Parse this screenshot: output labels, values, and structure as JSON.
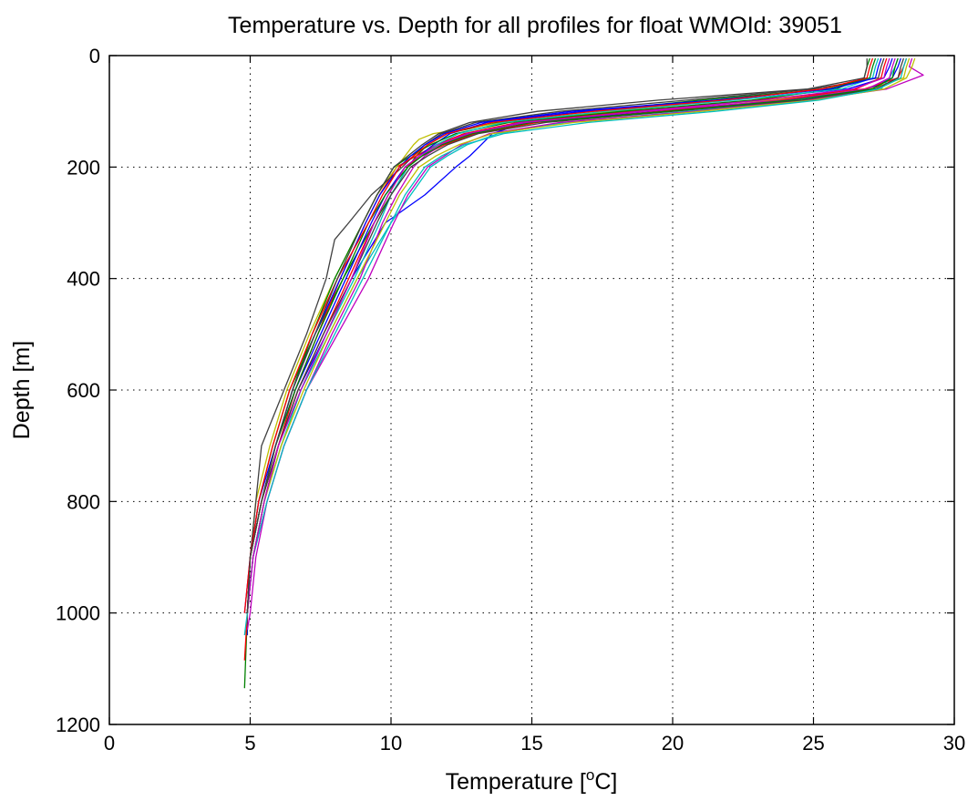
{
  "chart_data": {
    "type": "line",
    "title": "Temperature vs. Depth for all profiles for float WMOId: 39051",
    "xlabel": "Temperature [",
    "xlabel_superscript": "o",
    "xlabel_suffix": "C]",
    "ylabel": "Depth [m]",
    "xlim": [
      0,
      30
    ],
    "ylim": [
      0,
      1200
    ],
    "y_reversed": true,
    "grid": true,
    "grid_style": "dotted",
    "x_ticks": [
      0,
      5,
      10,
      15,
      20,
      25,
      30
    ],
    "y_ticks": [
      0,
      200,
      400,
      600,
      800,
      1000,
      1200
    ],
    "x_tick_labels": [
      "0",
      "5",
      "10",
      "15",
      "20",
      "25",
      "30"
    ],
    "y_tick_labels": [
      "0",
      "200",
      "400",
      "600",
      "800",
      "1000",
      "1200"
    ],
    "series_colors": [
      "#0000ff",
      "#008000",
      "#ff0000",
      "#00bfbf",
      "#bf00bf",
      "#bfbf00",
      "#404040"
    ],
    "series": [
      {
        "color": "#0000ff",
        "depth": [
          5,
          20,
          40,
          60,
          80,
          100,
          120,
          140,
          160,
          180,
          200,
          250,
          300,
          400,
          500,
          600,
          700,
          800,
          900,
          1000,
          1040
        ],
        "temp": [
          28.1,
          28.0,
          27.8,
          27.0,
          24.5,
          19.5,
          14.8,
          13.6,
          13.2,
          12.8,
          12.3,
          11.2,
          9.8,
          8.6,
          7.7,
          6.7,
          6.0,
          5.5,
          5.1,
          4.9,
          4.9
        ]
      },
      {
        "color": "#008000",
        "depth": [
          5,
          20,
          40,
          60,
          80,
          100,
          120,
          140,
          160,
          180,
          200,
          250,
          300,
          400,
          500,
          600,
          700,
          800,
          900,
          1000,
          1135
        ],
        "temp": [
          27.2,
          27.1,
          27.0,
          25.5,
          21.0,
          17.0,
          13.8,
          12.0,
          11.3,
          10.9,
          10.6,
          10.0,
          9.4,
          8.3,
          7.3,
          6.4,
          5.8,
          5.3,
          5.0,
          4.9,
          4.8
        ]
      },
      {
        "color": "#ff0000",
        "depth": [
          5,
          20,
          40,
          60,
          80,
          100,
          120,
          140,
          160,
          180,
          200,
          250,
          300,
          400,
          500,
          600,
          700,
          800,
          900,
          1000,
          1085
        ],
        "temp": [
          28.3,
          28.2,
          28.0,
          26.8,
          23.0,
          18.5,
          14.5,
          12.6,
          11.6,
          10.9,
          10.2,
          9.6,
          9.1,
          8.2,
          7.4,
          6.6,
          6.0,
          5.5,
          5.1,
          4.9,
          4.8
        ]
      },
      {
        "color": "#00bfbf",
        "depth": [
          5,
          20,
          40,
          60,
          80,
          100,
          120,
          140,
          160,
          180,
          200,
          250,
          300,
          400,
          500,
          600,
          700,
          800,
          900,
          1000,
          1040
        ],
        "temp": [
          28.0,
          27.9,
          27.7,
          27.4,
          24.5,
          20.5,
          16.2,
          13.8,
          12.7,
          12.0,
          11.4,
          10.7,
          10.0,
          8.8,
          7.8,
          6.8,
          6.1,
          5.5,
          5.1,
          4.9,
          4.8
        ]
      },
      {
        "color": "#bf00bf",
        "depth": [
          5,
          20,
          35,
          60,
          80,
          100,
          120,
          140,
          160,
          180,
          200,
          250,
          300,
          400,
          500,
          600,
          700,
          800,
          900,
          1000,
          1030
        ],
        "temp": [
          28.5,
          28.4,
          28.9,
          27.6,
          24.8,
          20.8,
          16.0,
          13.5,
          12.5,
          11.9,
          11.3,
          10.6,
          10.1,
          9.2,
          8.1,
          7.0,
          6.2,
          5.6,
          5.2,
          5.0,
          4.9
        ]
      },
      {
        "color": "#bfbf00",
        "depth": [
          5,
          20,
          40,
          60,
          80,
          100,
          120,
          140,
          150,
          160,
          180,
          200,
          250,
          300,
          400,
          500,
          600,
          700,
          800,
          900,
          1000
        ],
        "temp": [
          28.4,
          28.3,
          28.2,
          27.0,
          23.5,
          18.0,
          14.0,
          11.5,
          11.0,
          10.8,
          10.5,
          10.2,
          9.5,
          9.0,
          8.0,
          7.1,
          6.3,
          5.7,
          5.2,
          5.0,
          4.9
        ]
      },
      {
        "color": "#404040",
        "depth": [
          5,
          20,
          40,
          60,
          80,
          100,
          120,
          140,
          160,
          180,
          200,
          250,
          300,
          330,
          400,
          500,
          600,
          700,
          800,
          900,
          1000
        ],
        "temp": [
          27.5,
          27.4,
          27.3,
          25.0,
          20.5,
          16.0,
          13.0,
          11.8,
          11.2,
          10.8,
          10.4,
          9.3,
          8.5,
          8.0,
          7.7,
          7.0,
          6.2,
          5.4,
          5.2,
          5.0,
          4.9
        ]
      },
      {
        "color": "#0000ff",
        "depth": [
          5,
          20,
          40,
          60,
          80,
          100,
          120,
          140,
          160,
          180,
          200,
          250,
          300,
          400,
          500,
          600,
          700,
          800,
          900,
          1000
        ],
        "temp": [
          27.8,
          27.7,
          27.5,
          26.2,
          22.0,
          16.8,
          13.4,
          12.1,
          11.5,
          11.0,
          10.5,
          9.8,
          9.3,
          8.4,
          7.5,
          6.6,
          5.9,
          5.4,
          5.0,
          4.9
        ]
      },
      {
        "color": "#008000",
        "depth": [
          5,
          20,
          40,
          60,
          80,
          100,
          120,
          140,
          160,
          180,
          200,
          250,
          300,
          400,
          500,
          600,
          700,
          800,
          900,
          1000
        ],
        "temp": [
          27.0,
          26.9,
          26.8,
          25.8,
          22.8,
          18.2,
          14.2,
          12.3,
          11.4,
          10.7,
          10.1,
          9.5,
          9.0,
          8.0,
          7.2,
          6.5,
          5.9,
          5.4,
          5.0,
          4.9
        ]
      },
      {
        "color": "#ff0000",
        "depth": [
          5,
          20,
          40,
          60,
          80,
          100,
          120,
          140,
          160,
          180,
          200,
          250,
          300,
          400,
          500,
          600,
          700,
          800,
          900,
          1000
        ],
        "temp": [
          27.6,
          27.5,
          27.4,
          26.5,
          23.8,
          19.6,
          15.2,
          13.0,
          11.9,
          11.1,
          10.5,
          9.9,
          9.4,
          8.5,
          7.6,
          6.7,
          6.0,
          5.4,
          5.0,
          4.9
        ]
      },
      {
        "color": "#00bfbf",
        "depth": [
          5,
          20,
          40,
          60,
          80,
          100,
          120,
          140,
          160,
          180,
          200,
          250,
          300,
          400,
          500,
          600,
          700,
          800,
          900,
          1000
        ],
        "temp": [
          27.3,
          27.2,
          27.1,
          26.0,
          22.2,
          17.6,
          14.0,
          12.4,
          11.6,
          11.1,
          10.6,
          10.0,
          9.6,
          8.7,
          7.7,
          6.8,
          6.1,
          5.5,
          5.1,
          4.9
        ]
      },
      {
        "color": "#bf00bf",
        "depth": [
          5,
          20,
          40,
          60,
          80,
          100,
          120,
          140,
          160,
          180,
          200,
          250,
          300,
          400,
          500,
          600,
          700,
          800,
          900,
          1000
        ],
        "temp": [
          27.9,
          27.8,
          27.7,
          26.9,
          24.0,
          19.0,
          14.6,
          12.8,
          11.8,
          11.2,
          10.8,
          10.2,
          9.7,
          8.9,
          7.9,
          7.0,
          6.2,
          5.6,
          5.1,
          4.9
        ]
      },
      {
        "color": "#bfbf00",
        "depth": [
          5,
          20,
          40,
          60,
          80,
          100,
          120,
          140,
          160,
          180,
          200,
          250,
          300,
          400,
          500,
          600,
          700,
          800,
          900,
          1000
        ],
        "temp": [
          28.6,
          28.5,
          28.3,
          27.5,
          25.0,
          21.0,
          16.5,
          13.6,
          12.4,
          11.6,
          11.0,
          10.3,
          9.8,
          8.8,
          7.8,
          6.9,
          6.1,
          5.5,
          5.1,
          4.9
        ]
      },
      {
        "color": "#404040",
        "depth": [
          5,
          20,
          40,
          60,
          80,
          100,
          120,
          140,
          160,
          180,
          200,
          250,
          300,
          400,
          500,
          600,
          700,
          800,
          900,
          1000
        ],
        "temp": [
          28.2,
          28.1,
          28.0,
          27.2,
          24.6,
          20.0,
          15.5,
          13.1,
          12.0,
          11.3,
          10.7,
          10.0,
          9.5,
          8.6,
          7.6,
          6.7,
          6.0,
          5.4,
          5.0,
          4.9
        ]
      },
      {
        "color": "#0000ff",
        "depth": [
          5,
          20,
          40,
          60,
          80,
          100,
          120,
          140,
          160,
          180,
          200,
          250,
          300,
          400,
          500,
          600,
          700,
          800,
          900,
          1000
        ],
        "temp": [
          27.4,
          27.3,
          27.2,
          25.6,
          21.5,
          16.4,
          13.2,
          11.9,
          11.2,
          10.7,
          10.3,
          9.6,
          9.1,
          8.2,
          7.3,
          6.5,
          5.9,
          5.3,
          5.0,
          4.8
        ]
      },
      {
        "color": "#008000",
        "depth": [
          5,
          20,
          40,
          60,
          80,
          100,
          120,
          140,
          160,
          180,
          200,
          250,
          300,
          400,
          500,
          600,
          700,
          800,
          900,
          1000
        ],
        "temp": [
          28.0,
          27.9,
          27.8,
          27.1,
          24.2,
          19.8,
          15.0,
          12.9,
          11.8,
          11.1,
          10.6,
          9.8,
          9.2,
          8.3,
          7.4,
          6.6,
          5.9,
          5.4,
          5.0,
          4.9
        ]
      },
      {
        "color": "#ff0000",
        "depth": [
          5,
          20,
          40,
          60,
          80,
          100,
          120,
          140,
          160,
          180,
          200,
          250,
          300,
          400,
          500,
          600,
          700,
          800,
          900,
          1000
        ],
        "temp": [
          27.1,
          27.0,
          26.9,
          25.3,
          21.8,
          17.2,
          13.6,
          12.0,
          11.3,
          10.8,
          10.3,
          9.7,
          9.2,
          8.1,
          7.2,
          6.4,
          5.8,
          5.3,
          5.0,
          4.8
        ]
      },
      {
        "color": "#00bfbf",
        "depth": [
          5,
          20,
          40,
          60,
          80,
          100,
          120,
          140,
          160,
          180,
          200,
          250,
          300,
          400,
          500,
          600,
          700,
          800,
          900,
          1000
        ],
        "temp": [
          28.3,
          28.2,
          28.1,
          27.3,
          25.2,
          21.5,
          17.0,
          14.0,
          12.6,
          11.8,
          11.2,
          10.5,
          10.0,
          9.0,
          8.0,
          7.0,
          6.2,
          5.6,
          5.1,
          4.9
        ]
      },
      {
        "color": "#bf00bf",
        "depth": [
          5,
          20,
          40,
          60,
          80,
          100,
          120,
          140,
          160,
          180,
          200,
          250,
          300,
          400,
          500,
          600,
          700,
          800,
          900,
          1000
        ],
        "temp": [
          27.7,
          27.6,
          27.5,
          26.4,
          23.2,
          18.8,
          14.8,
          12.7,
          11.7,
          11.0,
          10.5,
          9.9,
          9.4,
          8.6,
          7.7,
          6.8,
          6.0,
          5.5,
          5.1,
          4.9
        ]
      },
      {
        "color": "#404040",
        "depth": [
          5,
          20,
          40,
          60,
          80,
          100,
          120,
          140,
          160,
          180,
          200,
          250,
          300,
          400,
          500,
          600,
          700,
          800,
          900,
          1000
        ],
        "temp": [
          26.9,
          26.9,
          26.8,
          24.8,
          19.5,
          15.2,
          12.8,
          11.7,
          11.1,
          10.6,
          10.1,
          9.5,
          9.0,
          8.1,
          7.3,
          6.5,
          5.9,
          5.4,
          5.0,
          4.9
        ]
      }
    ]
  }
}
